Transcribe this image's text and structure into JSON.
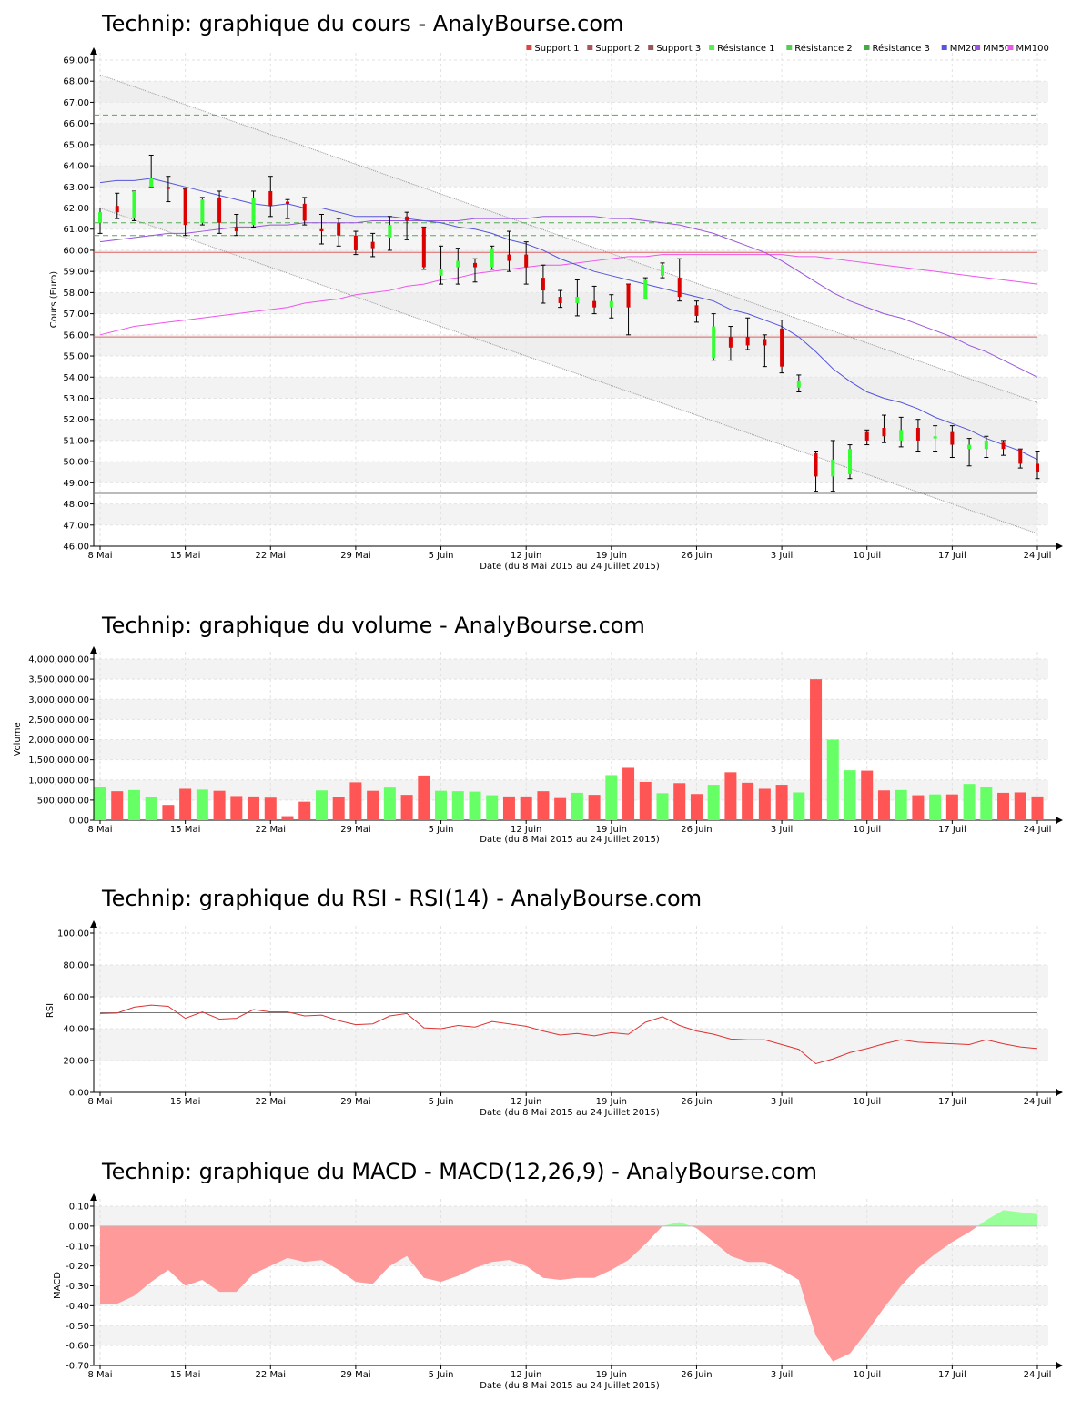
{
  "x_labels": [
    "8 Mai",
    "15 Mai",
    "22 Mai",
    "29 Mai",
    "5 Juin",
    "12 Juin",
    "19 Juin",
    "26 Juin",
    "3 Juil",
    "10 Juil",
    "17 Juil",
    "24 Juil"
  ],
  "xlabel": "Date (du 8 Mai 2015 au 24 Juillet 2015)",
  "colors": {
    "up": "#33ff33",
    "down": "#dd0000",
    "vol_up": "#66ff66",
    "vol_down": "#ff5555",
    "mm20": "#5555dd",
    "mm50": "#9955dd",
    "mm100": "#ee55ee",
    "support": "#dd4444",
    "resistance": "#44aa44",
    "macd_neg": "#ff9a9a",
    "macd_pos": "#99ff99"
  },
  "chart_data": [
    {
      "type": "candlestick",
      "title": "Technip: graphique du cours - AnalyBourse.com",
      "ylabel": "Cours (Euro)",
      "ylim": [
        46,
        69
      ],
      "yticks": [
        "46.00",
        "47.00",
        "48.00",
        "49.00",
        "50.00",
        "51.00",
        "52.00",
        "53.00",
        "54.00",
        "55.00",
        "56.00",
        "57.00",
        "58.00",
        "59.00",
        "60.00",
        "61.00",
        "62.00",
        "63.00",
        "64.00",
        "65.00",
        "66.00",
        "67.00",
        "68.00",
        "69.00"
      ],
      "legend": [
        "Support 1",
        "Support 2",
        "Support 3",
        "Résistance 1",
        "Résistance 2",
        "Résistance 3",
        "MM20",
        "MM50",
        "MM100"
      ],
      "legend_position": "top-right",
      "candles": [
        {
          "o": 61.3,
          "c": 61.8,
          "h": 62.0,
          "l": 60.8
        },
        {
          "o": 62.1,
          "c": 61.8,
          "h": 62.7,
          "l": 61.5
        },
        {
          "o": 61.5,
          "c": 62.8,
          "h": 62.8,
          "l": 61.4
        },
        {
          "o": 63.0,
          "c": 63.4,
          "h": 64.5,
          "l": 63.0
        },
        {
          "o": 63.0,
          "c": 62.9,
          "h": 63.5,
          "l": 62.3
        },
        {
          "o": 62.9,
          "c": 61.2,
          "h": 62.9,
          "l": 60.7
        },
        {
          "o": 61.3,
          "c": 62.4,
          "h": 62.5,
          "l": 61.2
        },
        {
          "o": 62.5,
          "c": 61.3,
          "h": 62.8,
          "l": 60.8
        },
        {
          "o": 61.1,
          "c": 60.9,
          "h": 61.7,
          "l": 60.7
        },
        {
          "o": 61.2,
          "c": 62.5,
          "h": 62.8,
          "l": 61.1
        },
        {
          "o": 62.8,
          "c": 62.1,
          "h": 63.5,
          "l": 61.6
        },
        {
          "o": 62.3,
          "c": 62.2,
          "h": 62.4,
          "l": 61.5
        },
        {
          "o": 62.2,
          "c": 61.4,
          "h": 62.5,
          "l": 61.2
        },
        {
          "o": 61.0,
          "c": 60.9,
          "h": 61.7,
          "l": 60.3
        },
        {
          "o": 61.3,
          "c": 60.7,
          "h": 61.5,
          "l": 60.2
        },
        {
          "o": 60.7,
          "c": 60.0,
          "h": 60.9,
          "l": 59.8
        },
        {
          "o": 60.4,
          "c": 60.1,
          "h": 60.8,
          "l": 59.7
        },
        {
          "o": 60.6,
          "c": 61.2,
          "h": 61.6,
          "l": 60.0
        },
        {
          "o": 61.6,
          "c": 61.4,
          "h": 61.8,
          "l": 60.5
        },
        {
          "o": 61.1,
          "c": 59.2,
          "h": 61.1,
          "l": 59.1
        },
        {
          "o": 58.8,
          "c": 59.1,
          "h": 60.2,
          "l": 58.4
        },
        {
          "o": 59.2,
          "c": 59.5,
          "h": 60.1,
          "l": 58.4
        },
        {
          "o": 59.4,
          "c": 59.2,
          "h": 59.6,
          "l": 58.5
        },
        {
          "o": 59.2,
          "c": 60.1,
          "h": 60.2,
          "l": 59.1
        },
        {
          "o": 59.8,
          "c": 59.5,
          "h": 60.9,
          "l": 59.0
        },
        {
          "o": 59.8,
          "c": 59.2,
          "h": 60.4,
          "l": 58.4
        },
        {
          "o": 58.7,
          "c": 58.1,
          "h": 59.3,
          "l": 57.5
        },
        {
          "o": 57.8,
          "c": 57.5,
          "h": 58.1,
          "l": 57.3
        },
        {
          "o": 57.5,
          "c": 57.8,
          "h": 58.6,
          "l": 56.9
        },
        {
          "o": 57.6,
          "c": 57.3,
          "h": 58.3,
          "l": 57.0
        },
        {
          "o": 57.3,
          "c": 57.6,
          "h": 57.9,
          "l": 56.8
        },
        {
          "o": 58.4,
          "c": 57.3,
          "h": 58.4,
          "l": 56.0
        },
        {
          "o": 57.7,
          "c": 58.6,
          "h": 58.7,
          "l": 57.7
        },
        {
          "o": 58.8,
          "c": 59.3,
          "h": 59.4,
          "l": 58.7
        },
        {
          "o": 58.7,
          "c": 57.8,
          "h": 59.6,
          "l": 57.6
        },
        {
          "o": 57.4,
          "c": 56.9,
          "h": 57.6,
          "l": 56.6
        },
        {
          "o": 54.9,
          "c": 56.4,
          "h": 57.0,
          "l": 54.8
        },
        {
          "o": 55.9,
          "c": 55.4,
          "h": 56.4,
          "l": 54.8
        },
        {
          "o": 55.9,
          "c": 55.5,
          "h": 56.8,
          "l": 55.3
        },
        {
          "o": 55.8,
          "c": 55.5,
          "h": 56.0,
          "l": 54.5
        },
        {
          "o": 56.3,
          "c": 54.5,
          "h": 56.7,
          "l": 54.2
        },
        {
          "o": 53.5,
          "c": 53.8,
          "h": 54.1,
          "l": 53.3
        },
        {
          "o": 50.4,
          "c": 49.3,
          "h": 50.5,
          "l": 48.6
        },
        {
          "o": 49.3,
          "c": 50.1,
          "h": 51.0,
          "l": 48.6
        },
        {
          "o": 49.4,
          "c": 50.6,
          "h": 50.8,
          "l": 49.2
        },
        {
          "o": 51.4,
          "c": 51.0,
          "h": 51.5,
          "l": 50.8
        },
        {
          "o": 51.6,
          "c": 51.2,
          "h": 52.2,
          "l": 50.9
        },
        {
          "o": 51.0,
          "c": 51.5,
          "h": 52.1,
          "l": 50.7
        },
        {
          "o": 51.6,
          "c": 51.0,
          "h": 52.0,
          "l": 50.5
        },
        {
          "o": 51.1,
          "c": 51.2,
          "h": 51.7,
          "l": 50.5
        },
        {
          "o": 51.4,
          "c": 50.8,
          "h": 51.7,
          "l": 50.2
        },
        {
          "o": 50.6,
          "c": 50.8,
          "h": 51.1,
          "l": 49.8
        },
        {
          "o": 50.6,
          "c": 51.0,
          "h": 51.2,
          "l": 50.2
        },
        {
          "o": 50.9,
          "c": 50.6,
          "h": 51.0,
          "l": 50.3
        },
        {
          "o": 50.6,
          "c": 49.9,
          "h": 50.6,
          "l": 49.7
        },
        {
          "o": 49.9,
          "c": 49.5,
          "h": 50.5,
          "l": 49.2
        }
      ],
      "support": [
        59.9,
        55.9,
        48.5
      ],
      "resistance": [
        61.3,
        60.7,
        66.4
      ],
      "mm20": [
        63.2,
        63.3,
        63.3,
        63.4,
        63.2,
        63.0,
        62.8,
        62.6,
        62.4,
        62.2,
        62.1,
        62.2,
        62.0,
        62.0,
        61.8,
        61.6,
        61.6,
        61.6,
        61.5,
        61.4,
        61.3,
        61.1,
        61.0,
        60.8,
        60.5,
        60.3,
        60.0,
        59.6,
        59.3,
        59.0,
        58.8,
        58.6,
        58.4,
        58.2,
        58.0,
        57.8,
        57.6,
        57.2,
        57.0,
        56.7,
        56.4,
        55.9,
        55.2,
        54.4,
        53.8,
        53.3,
        53.0,
        52.8,
        52.5,
        52.1,
        51.8,
        51.5,
        51.1,
        50.8,
        50.5,
        50.1
      ],
      "mm50": [
        60.4,
        60.5,
        60.6,
        60.7,
        60.8,
        60.8,
        60.9,
        61.0,
        61.1,
        61.1,
        61.2,
        61.2,
        61.3,
        61.3,
        61.3,
        61.3,
        61.4,
        61.4,
        61.4,
        61.4,
        61.4,
        61.4,
        61.5,
        61.5,
        61.5,
        61.5,
        61.6,
        61.6,
        61.6,
        61.6,
        61.5,
        61.5,
        61.4,
        61.3,
        61.2,
        61.0,
        60.8,
        60.5,
        60.2,
        59.9,
        59.5,
        59.0,
        58.5,
        58.0,
        57.6,
        57.3,
        57.0,
        56.8,
        56.5,
        56.2,
        55.9,
        55.5,
        55.2,
        54.8,
        54.4,
        54.0
      ],
      "mm100": [
        56.0,
        56.2,
        56.4,
        56.5,
        56.6,
        56.7,
        56.8,
        56.9,
        57.0,
        57.1,
        57.2,
        57.3,
        57.5,
        57.6,
        57.7,
        57.9,
        58.0,
        58.1,
        58.3,
        58.4,
        58.6,
        58.7,
        58.9,
        59.0,
        59.1,
        59.2,
        59.3,
        59.3,
        59.4,
        59.5,
        59.6,
        59.7,
        59.7,
        59.8,
        59.8,
        59.8,
        59.8,
        59.8,
        59.8,
        59.8,
        59.8,
        59.7,
        59.7,
        59.6,
        59.5,
        59.4,
        59.3,
        59.2,
        59.1,
        59.0,
        58.9,
        58.8,
        58.7,
        58.6,
        58.5,
        58.4
      ],
      "channel": {
        "upper": [
          68.3,
          52.8
        ],
        "lower": [
          62.0,
          46.6
        ]
      }
    },
    {
      "type": "bar",
      "title": "Technip: graphique du volume - AnalyBourse.com",
      "ylabel": "Volume",
      "ylim": [
        0,
        4000000
      ],
      "yticks": [
        "0.00",
        "500,000.00",
        "1,000,000.00",
        "1,500,000.00",
        "2,000,000.00",
        "2,500,000.00",
        "3,000,000.00",
        "3,500,000.00",
        "4,000,000.00"
      ],
      "values": [
        820000,
        720000,
        750000,
        570000,
        380000,
        780000,
        760000,
        730000,
        600000,
        590000,
        560000,
        100000,
        460000,
        740000,
        580000,
        940000,
        730000,
        810000,
        630000,
        1110000,
        730000,
        720000,
        710000,
        620000,
        590000,
        590000,
        720000,
        550000,
        680000,
        630000,
        1120000,
        1300000,
        950000,
        670000,
        920000,
        650000,
        880000,
        1190000,
        930000,
        780000,
        880000,
        690000,
        3500000,
        2000000,
        1240000,
        1230000,
        740000,
        750000,
        620000,
        640000,
        640000,
        900000,
        820000,
        680000,
        690000,
        590000
      ],
      "up": [
        true,
        false,
        true,
        true,
        false,
        false,
        true,
        false,
        false,
        false,
        false,
        false,
        false,
        true,
        false,
        false,
        false,
        true,
        false,
        false,
        true,
        true,
        true,
        true,
        false,
        false,
        false,
        false,
        true,
        false,
        true,
        false,
        false,
        true,
        false,
        false,
        true,
        false,
        false,
        false,
        false,
        true,
        false,
        true,
        true,
        false,
        false,
        true,
        false,
        true,
        false,
        true,
        true,
        false,
        false,
        false
      ]
    },
    {
      "type": "line",
      "title": "Technip: graphique du RSI - RSI(14) - AnalyBourse.com",
      "ylabel": "RSI",
      "ylim": [
        0,
        100
      ],
      "yticks": [
        "0.00",
        "20.00",
        "40.00",
        "60.00",
        "80.00",
        "100.00"
      ],
      "reference": 50,
      "values": [
        49.5,
        49.8,
        53.5,
        54.8,
        54.0,
        46.5,
        50.5,
        46.0,
        46.5,
        52.0,
        50.5,
        50.5,
        48.0,
        48.5,
        45.0,
        42.5,
        43.0,
        48.0,
        49.5,
        40.5,
        40.0,
        42.0,
        41.0,
        44.5,
        43.0,
        41.5,
        38.5,
        36.0,
        37.0,
        35.5,
        37.5,
        36.5,
        44.0,
        47.5,
        42.0,
        38.5,
        36.5,
        33.5,
        33.0,
        33.0,
        30.0,
        27.0,
        18.0,
        21.0,
        25.0,
        27.5,
        30.5,
        33.0,
        31.5,
        31.0,
        30.5,
        30.0,
        33.0,
        30.5,
        28.5,
        27.5
      ]
    },
    {
      "type": "area",
      "title": "Technip: graphique du MACD - MACD(12,26,9) - AnalyBourse.com",
      "ylabel": "MACD",
      "ylim": [
        -0.7,
        0.1
      ],
      "yticks": [
        "-0.70",
        "-0.60",
        "-0.50",
        "-0.40",
        "-0.30",
        "-0.20",
        "-0.10",
        "0.00",
        "0.10"
      ],
      "values": [
        -0.39,
        -0.39,
        -0.35,
        -0.28,
        -0.22,
        -0.3,
        -0.27,
        -0.33,
        -0.33,
        -0.24,
        -0.2,
        -0.16,
        -0.18,
        -0.17,
        -0.22,
        -0.28,
        -0.29,
        -0.2,
        -0.15,
        -0.26,
        -0.28,
        -0.25,
        -0.21,
        -0.18,
        -0.17,
        -0.2,
        -0.26,
        -0.27,
        -0.26,
        -0.26,
        -0.22,
        -0.17,
        -0.09,
        0.0,
        0.02,
        -0.01,
        -0.08,
        -0.15,
        -0.18,
        -0.18,
        -0.22,
        -0.27,
        -0.55,
        -0.68,
        -0.64,
        -0.53,
        -0.41,
        -0.3,
        -0.21,
        -0.14,
        -0.08,
        -0.03,
        0.03,
        0.08,
        0.07,
        0.06
      ]
    }
  ]
}
